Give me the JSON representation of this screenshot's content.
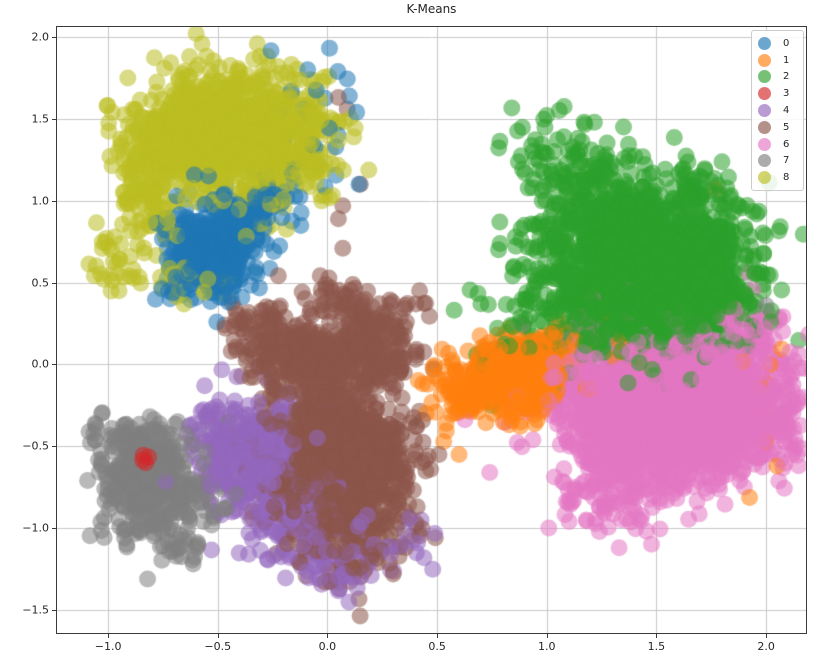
{
  "colors": {
    "background": "#ffffff",
    "grid": "#c9c9c9",
    "spine": "#3a3a3a",
    "text": "#262626",
    "legend_border": "#cccccc"
  },
  "chart_data": {
    "type": "scatter",
    "title": "K-Means",
    "xlabel": "",
    "ylabel": "",
    "xlim": [
      -1.233,
      2.182
    ],
    "ylim": [
      -1.64,
      2.061
    ],
    "grid": true,
    "legend_loc": "upper right",
    "marker_diameter_px": 17,
    "marker_alpha": 0.55,
    "seed": 7,
    "xticks": [
      {
        "v": -1.0,
        "label": "−1.0"
      },
      {
        "v": -0.5,
        "label": "−0.5"
      },
      {
        "v": 0.0,
        "label": "0.0"
      },
      {
        "v": 0.5,
        "label": "0.5"
      },
      {
        "v": 1.0,
        "label": "1.0"
      },
      {
        "v": 1.5,
        "label": "1.5"
      },
      {
        "v": 2.0,
        "label": "2.0"
      }
    ],
    "yticks": [
      {
        "v": 2.0,
        "label": "2.0"
      },
      {
        "v": 1.5,
        "label": "1.5"
      },
      {
        "v": 1.0,
        "label": "1.0"
      },
      {
        "v": 0.5,
        "label": "0.5"
      },
      {
        "v": 0.0,
        "label": "0.0"
      },
      {
        "v": -0.5,
        "label": "−0.5"
      },
      {
        "v": -1.0,
        "label": "−1.0"
      },
      {
        "v": -1.5,
        "label": "−1.5"
      }
    ],
    "clusters": [
      {
        "label": "0",
        "color": "#1f77b4",
        "blobs": [
          [
            -0.52,
            0.7,
            0.1,
            0.14,
            300
          ],
          [
            -0.38,
            0.92,
            0.09,
            0.1,
            80
          ],
          [
            -0.25,
            1.06,
            0.06,
            0.08,
            20
          ],
          [
            0.0,
            1.55,
            0.1,
            0.2,
            14
          ],
          [
            -0.1,
            1.18,
            0.08,
            0.14,
            10
          ],
          [
            -0.68,
            0.47,
            0.08,
            0.06,
            14
          ]
        ],
        "points": [
          [
            -0.09,
            1.8
          ],
          [
            0.1,
            1.64
          ],
          [
            -0.45,
            0.38
          ],
          [
            -0.39,
            0.41
          ]
        ]
      },
      {
        "label": "1",
        "color": "#ff7f0e",
        "blobs": [
          [
            0.87,
            -0.06,
            0.1,
            0.1,
            500
          ],
          [
            0.68,
            -0.18,
            0.09,
            0.09,
            100
          ],
          [
            0.52,
            -0.12,
            0.05,
            0.08,
            14
          ],
          [
            1.05,
            0.1,
            0.06,
            0.08,
            40
          ],
          [
            1.97,
            -0.2,
            0.05,
            0.22,
            10
          ],
          [
            1.25,
            0.06,
            0.15,
            0.1,
            20
          ]
        ],
        "points": [
          [
            1.77,
            1.07
          ],
          [
            2.05,
            -0.62
          ],
          [
            0.6,
            -0.55
          ],
          [
            0.53,
            -0.47
          ],
          [
            0.45,
            -0.3
          ]
        ]
      },
      {
        "label": "2",
        "color": "#2ca02c",
        "blobs": [
          [
            1.5,
            0.52,
            0.2,
            0.22,
            2400
          ],
          [
            1.25,
            0.95,
            0.15,
            0.18,
            250
          ],
          [
            1.08,
            1.25,
            0.12,
            0.15,
            60
          ],
          [
            0.95,
            0.4,
            0.1,
            0.2,
            70
          ],
          [
            1.75,
            1.05,
            0.1,
            0.12,
            40
          ],
          [
            0.82,
            0.05,
            0.06,
            0.1,
            15
          ]
        ],
        "points": [
          [
            1.0,
            1.52
          ],
          [
            1.17,
            1.48
          ],
          [
            1.35,
            1.45
          ],
          [
            0.78,
            0.7
          ],
          [
            0.68,
            0.06
          ],
          [
            0.75,
            -0.25
          ]
        ]
      },
      {
        "label": "3",
        "color": "#d62728",
        "draw_on_top": true,
        "blobs": [],
        "points": [
          [
            -0.84,
            -0.555
          ],
          [
            -0.815,
            -0.565
          ],
          [
            -0.842,
            -0.585
          ],
          [
            -0.828,
            -0.6
          ]
        ]
      },
      {
        "label": "4",
        "color": "#9467bd",
        "blobs": [
          [
            -0.3,
            -0.58,
            0.12,
            0.16,
            450
          ],
          [
            -0.12,
            -0.95,
            0.13,
            0.15,
            160
          ],
          [
            0.05,
            -1.2,
            0.1,
            0.1,
            50
          ],
          [
            -0.5,
            -0.4,
            0.07,
            0.09,
            40
          ],
          [
            0.38,
            -1.12,
            0.06,
            0.08,
            12
          ]
        ],
        "points": [
          [
            -0.56,
            -0.13
          ],
          [
            0.48,
            -1.25
          ],
          [
            0.44,
            -1.18
          ],
          [
            -0.62,
            -0.5
          ]
        ]
      },
      {
        "label": "5",
        "color": "#8c564b",
        "blobs": [
          [
            0.05,
            -0.62,
            0.15,
            0.25,
            1500
          ],
          [
            -0.12,
            0.05,
            0.12,
            0.1,
            230
          ],
          [
            -0.3,
            0.22,
            0.08,
            0.08,
            60
          ],
          [
            0.18,
            0.08,
            0.11,
            0.13,
            200
          ],
          [
            0.1,
            0.38,
            0.09,
            0.08,
            45
          ],
          [
            0.3,
            0.28,
            0.06,
            0.09,
            20
          ]
        ],
        "points": [
          [
            0.15,
            1.1
          ],
          [
            0.07,
            0.97
          ],
          [
            0.05,
            0.89
          ],
          [
            0.07,
            0.71
          ],
          [
            0.05,
            1.63
          ],
          [
            0.09,
            1.56
          ],
          [
            0.42,
            0.45
          ],
          [
            0.38,
            -1.05
          ],
          [
            0.3,
            -1.28
          ]
        ]
      },
      {
        "label": "6",
        "color": "#e377c2",
        "blobs": [
          [
            1.6,
            -0.25,
            0.24,
            0.2,
            3000
          ],
          [
            1.35,
            -0.6,
            0.12,
            0.15,
            150
          ],
          [
            1.3,
            -0.86,
            0.12,
            0.1,
            40
          ],
          [
            1.95,
            0.18,
            0.08,
            0.12,
            40
          ]
        ],
        "points": [
          [
            0.74,
            -0.66
          ],
          [
            1.18,
            -0.95
          ],
          [
            1.33,
            -1.12
          ],
          [
            1.24,
            -1.02
          ]
        ]
      },
      {
        "label": "7",
        "color": "#7f7f7f",
        "blobs": [
          [
            -0.82,
            -0.72,
            0.1,
            0.16,
            400
          ],
          [
            -0.88,
            -0.44,
            0.09,
            0.05,
            50
          ],
          [
            -0.6,
            -0.85,
            0.07,
            0.12,
            45
          ],
          [
            -0.7,
            -1.12,
            0.06,
            0.06,
            20
          ]
        ],
        "points": [
          [
            1.69,
            0.56
          ],
          [
            1.63,
            0.44
          ],
          [
            2.0,
            0.36
          ],
          [
            -1.08,
            -0.48
          ],
          [
            -0.45,
            -0.35
          ]
        ]
      },
      {
        "label": "8",
        "color": "#bcbd22",
        "blobs": [
          [
            -0.45,
            1.45,
            0.2,
            0.17,
            800
          ],
          [
            -0.7,
            1.28,
            0.12,
            0.13,
            180
          ],
          [
            -0.85,
            1.05,
            0.07,
            0.12,
            60
          ],
          [
            -0.97,
            0.62,
            0.06,
            0.09,
            28
          ],
          [
            -0.78,
            0.84,
            0.06,
            0.08,
            25
          ],
          [
            -0.12,
            1.38,
            0.1,
            0.17,
            90
          ],
          [
            -0.3,
            1.15,
            0.12,
            0.12,
            90
          ],
          [
            -0.6,
            0.52,
            0.1,
            0.07,
            30
          ]
        ],
        "points": [
          [
            -0.95,
            0.45
          ],
          [
            -1.02,
            0.52
          ],
          [
            0.05,
            1.37
          ],
          [
            0.12,
            1.39
          ],
          [
            -0.03,
            1.03
          ]
        ]
      }
    ]
  }
}
